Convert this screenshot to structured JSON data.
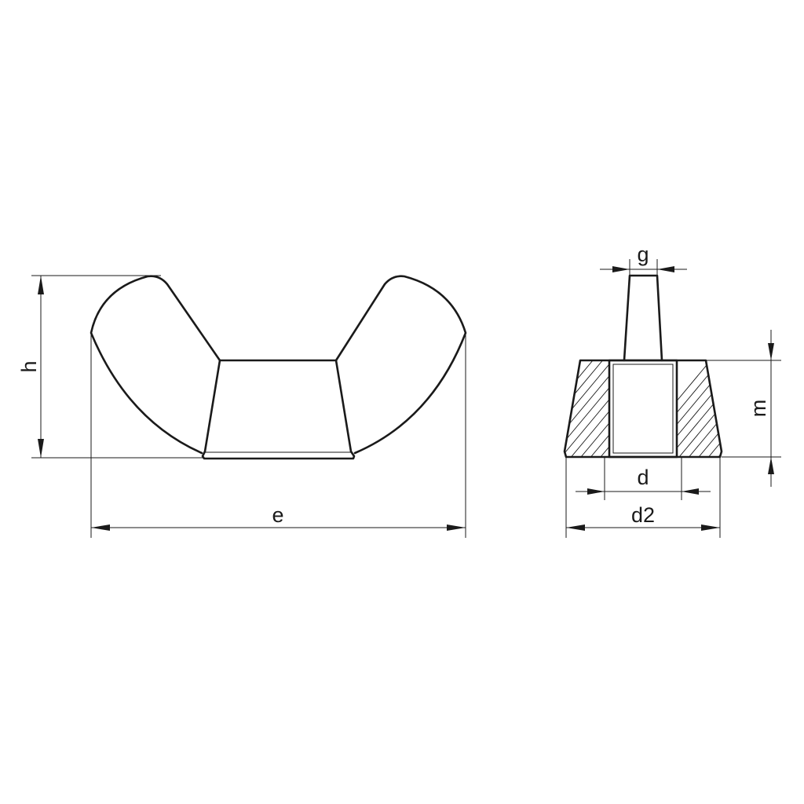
{
  "diagram": {
    "front_view": {
      "dimensions": {
        "height": "h",
        "width": "e"
      }
    },
    "side_view": {
      "dimensions": {
        "wing_thickness": "g",
        "nut_height": "m",
        "thread_diameter": "d",
        "base_diameter": "d2"
      }
    }
  },
  "colors": {
    "line": "#1a1a1a",
    "background": "#ffffff"
  }
}
